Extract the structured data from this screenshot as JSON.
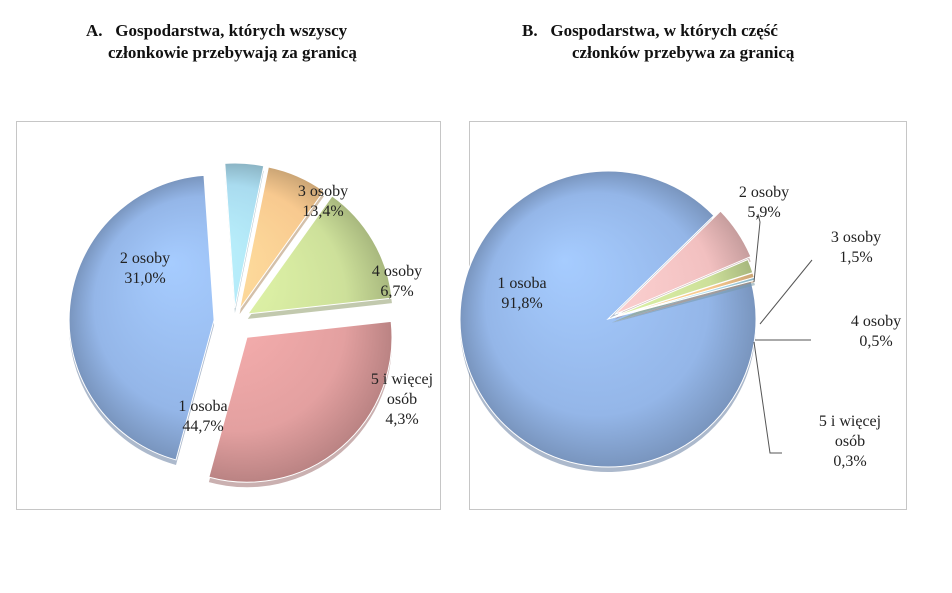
{
  "chart_data": [
    {
      "type": "pie",
      "title_prefix": "A.",
      "title_lines": [
        "Gospodarstwa, których wszyscy",
        "członkowie przebywają za granicą"
      ],
      "slices": [
        {
          "label": "1 osoba",
          "value_text": "44,7%",
          "value": 44.7,
          "color": "#94b6e8"
        },
        {
          "label": "2 osoby",
          "value_text": "31,0%",
          "value": 31.0,
          "color": "#e3a0a0"
        },
        {
          "label": "3 osoby",
          "value_text": "13,4%",
          "value": 13.4,
          "color": "#cde09a"
        },
        {
          "label": "4 osoby",
          "value_text": "6,7%",
          "value": 6.7,
          "color": "#f8c98f"
        },
        {
          "label": "5 i więcej osób",
          "label_lines": [
            "5 i więcej",
            "osób"
          ],
          "value_text": "4,3%",
          "value": 4.3,
          "color": "#a9dbef"
        }
      ]
    },
    {
      "type": "pie",
      "title_prefix": "B.",
      "title_lines": [
        "Gospodarstwa, w których część",
        "członków przebywa za granicą"
      ],
      "slices": [
        {
          "label": "1 osoba",
          "value_text": "91,8%",
          "value": 91.8,
          "color": "#94b6e8"
        },
        {
          "label": "2 osoby",
          "value_text": "5,9%",
          "value": 5.9,
          "color": "#f2c0c0"
        },
        {
          "label": "3 osoby",
          "value_text": "1,5%",
          "value": 1.5,
          "color": "#cde09a"
        },
        {
          "label": "4 osoby",
          "value_text": "0,5%",
          "value": 0.5,
          "color": "#f8c98f"
        },
        {
          "label": "5 i więcej osób",
          "label_lines": [
            "5 i więcej",
            "osób"
          ],
          "value_text": "0,3%",
          "value": 0.3,
          "color": "#a9dbef"
        }
      ]
    }
  ]
}
